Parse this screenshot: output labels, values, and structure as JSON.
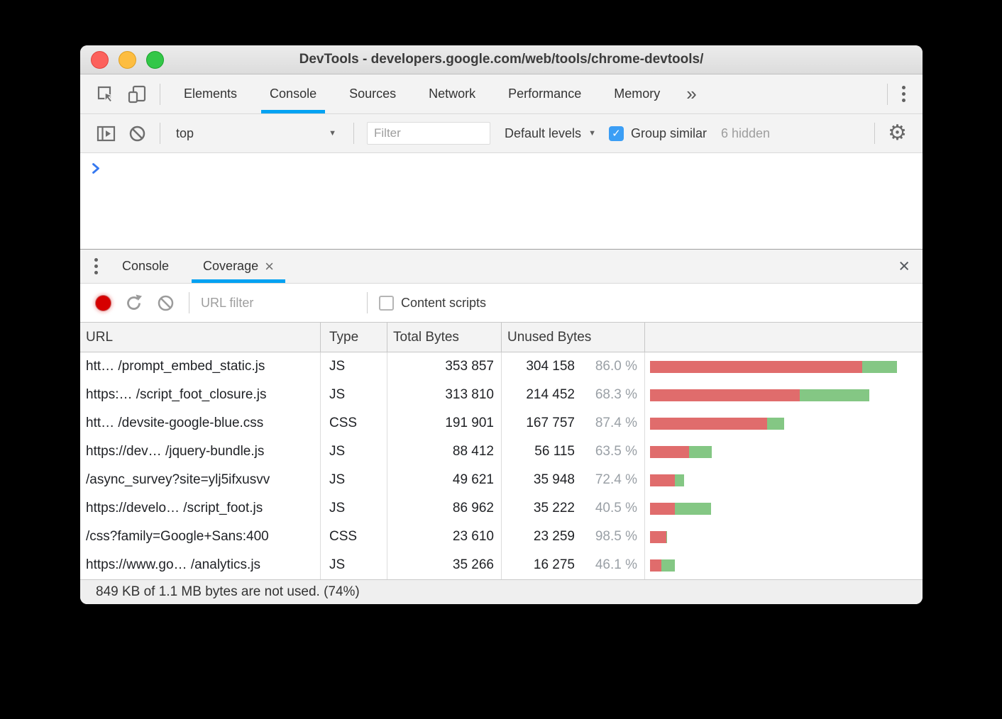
{
  "window": {
    "title": "DevTools - developers.google.com/web/tools/chrome-devtools/"
  },
  "main_tabs": {
    "items": [
      {
        "label": "Elements",
        "active": false
      },
      {
        "label": "Console",
        "active": true
      },
      {
        "label": "Sources",
        "active": false
      },
      {
        "label": "Network",
        "active": false
      },
      {
        "label": "Performance",
        "active": false
      },
      {
        "label": "Memory",
        "active": false
      }
    ],
    "more_icon": "»"
  },
  "console_toolbar": {
    "context_selected": "top",
    "filter_placeholder": "Filter",
    "levels_label": "Default levels",
    "group_similar_label": "Group similar",
    "group_similar_checked": true,
    "hidden_count_label": "6 hidden"
  },
  "console": {
    "prompt": ">"
  },
  "drawer": {
    "tabs": [
      {
        "label": "Console",
        "active": false,
        "closable": false
      },
      {
        "label": "Coverage",
        "active": true,
        "closable": true
      }
    ],
    "close_icon": "×"
  },
  "coverage_toolbar": {
    "url_filter_placeholder": "URL filter",
    "content_scripts_label": "Content scripts",
    "content_scripts_checked": false
  },
  "table": {
    "columns": [
      "URL",
      "Type",
      "Total Bytes",
      "Unused Bytes",
      ""
    ],
    "rows": [
      {
        "url": "htt… /prompt_embed_static.js",
        "type": "JS",
        "total_display": "353 857",
        "unused_display": "304 158",
        "percent_display": "86.0 %",
        "total": 353857,
        "unused": 304158
      },
      {
        "url": "https:… /script_foot_closure.js",
        "type": "JS",
        "total_display": "313 810",
        "unused_display": "214 452",
        "percent_display": "68.3 %",
        "total": 313810,
        "unused": 214452
      },
      {
        "url": "htt… /devsite-google-blue.css",
        "type": "CSS",
        "total_display": "191 901",
        "unused_display": "167 757",
        "percent_display": "87.4 %",
        "total": 191901,
        "unused": 167757
      },
      {
        "url": "https://dev… /jquery-bundle.js",
        "type": "JS",
        "total_display": "88 412",
        "unused_display": "56 115",
        "percent_display": "63.5 %",
        "total": 88412,
        "unused": 56115
      },
      {
        "url": "/async_survey?site=ylj5ifxusvv",
        "type": "JS",
        "total_display": "49 621",
        "unused_display": "35 948",
        "percent_display": "72.4 %",
        "total": 49621,
        "unused": 35948
      },
      {
        "url": "https://develo… /script_foot.js",
        "type": "JS",
        "total_display": "86 962",
        "unused_display": "35 222",
        "percent_display": "40.5 %",
        "total": 86962,
        "unused": 35222
      },
      {
        "url": "/css?family=Google+Sans:400",
        "type": "CSS",
        "total_display": "23 610",
        "unused_display": "23 259",
        "percent_display": "98.5 %",
        "total": 23610,
        "unused": 23259
      },
      {
        "url": "https://www.go… /analytics.js",
        "type": "JS",
        "total_display": "35 266",
        "unused_display": "16 275",
        "percent_display": "46.1 %",
        "total": 35266,
        "unused": 16275
      }
    ]
  },
  "status_bar": {
    "text": "849 KB of 1.1 MB bytes are not used. (74%)"
  },
  "colors": {
    "accent_blue": "#03a2f2",
    "checkbox_blue": "#3b9ef5",
    "bar_red": "#e06c6c",
    "bar_green": "#84c784",
    "record_red": "#d60000",
    "percent_gray": "#9aa0a6"
  }
}
